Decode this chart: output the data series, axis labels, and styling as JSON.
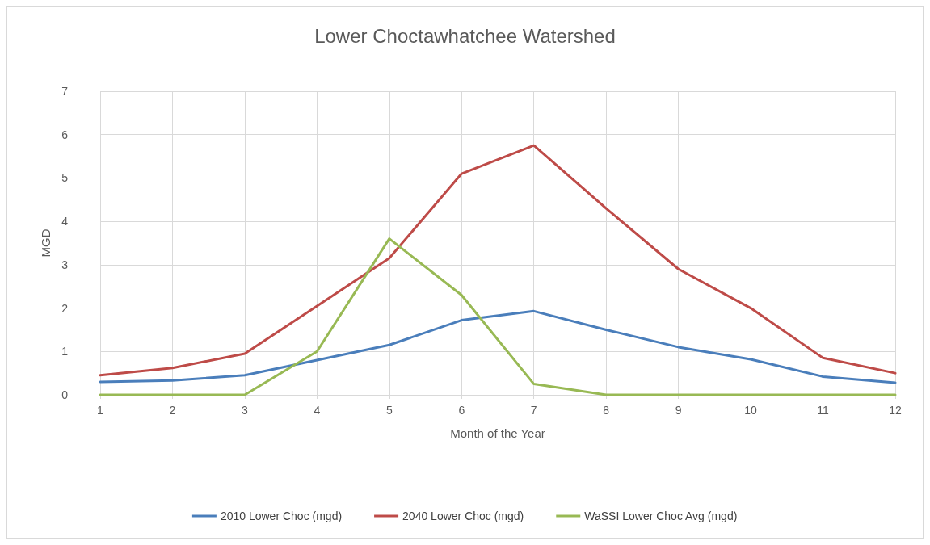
{
  "chart_data": {
    "type": "line",
    "title": "Lower Choctawhatchee Watershed",
    "xlabel": "Month of the Year",
    "ylabel": "MGD",
    "x": [
      1,
      2,
      3,
      4,
      5,
      6,
      7,
      8,
      9,
      10,
      11,
      12
    ],
    "series": [
      {
        "name": "2010 Lower Choc (mgd)",
        "color": "#4a7ebb",
        "values": [
          0.3,
          0.33,
          0.45,
          0.8,
          1.15,
          1.72,
          1.93,
          1.5,
          1.1,
          0.82,
          0.42,
          0.28
        ]
      },
      {
        "name": "2040 Lower Choc (mgd)",
        "color": "#be4b48",
        "values": [
          0.45,
          0.62,
          0.95,
          2.05,
          3.15,
          5.1,
          5.75,
          4.3,
          2.9,
          2.0,
          0.85,
          0.5
        ]
      },
      {
        "name": "WaSSI Lower Choc Avg (mgd)",
        "color": "#98b954",
        "values": [
          0,
          0,
          0,
          1.0,
          3.6,
          2.3,
          0.25,
          0,
          0,
          0,
          0,
          0
        ]
      }
    ],
    "xlim": [
      1,
      12
    ],
    "xticks": [
      1,
      2,
      3,
      4,
      5,
      6,
      7,
      8,
      9,
      10,
      11,
      12
    ],
    "ylim": [
      0,
      7
    ],
    "yticks": [
      0,
      1,
      2,
      3,
      4,
      5,
      6,
      7
    ],
    "grid": true,
    "legend": "bottom",
    "marker": "none",
    "line_style": "solid"
  }
}
